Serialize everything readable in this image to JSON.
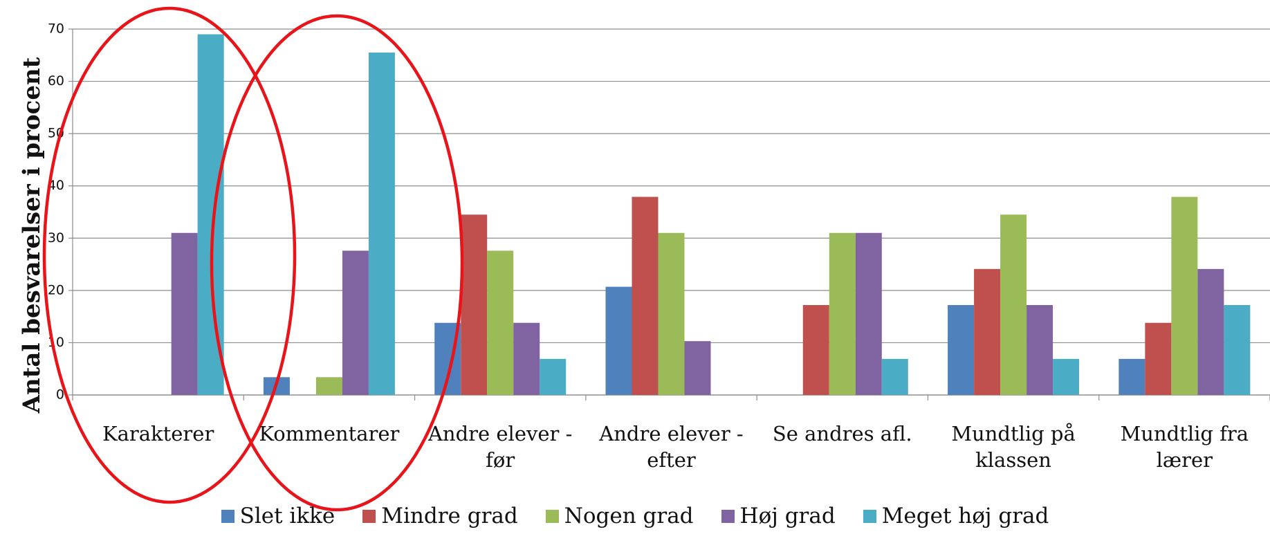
{
  "chart_data": {
    "type": "bar",
    "y_label": "Antal besvarelser i procent",
    "categories": [
      "Karakterer",
      "Kommentarer",
      "Andre elever -\nfør",
      "Andre elever -\nefter",
      "Se andres afl.",
      "Mundtlig på\nklassen",
      "Mundtlig fra\nlærer"
    ],
    "series": [
      {
        "name": "Slet ikke",
        "color": "#4f81bd",
        "values": [
          0,
          3.4,
          13.8,
          20.7,
          0,
          17.2,
          6.9
        ]
      },
      {
        "name": "Mindre grad",
        "color": "#c0504d",
        "values": [
          0,
          0,
          34.5,
          37.9,
          17.2,
          24.1,
          13.8
        ]
      },
      {
        "name": "Nogen grad",
        "color": "#9bbb59",
        "values": [
          0,
          3.4,
          27.6,
          31,
          31,
          34.5,
          37.9
        ]
      },
      {
        "name": "Høj grad",
        "color": "#8064a2",
        "values": [
          31,
          27.6,
          13.8,
          10.3,
          31,
          17.2,
          24.1
        ]
      },
      {
        "name": "Meget høj grad",
        "color": "#4bacc6",
        "values": [
          69,
          65.5,
          6.9,
          0,
          6.9,
          6.9,
          17.2
        ]
      }
    ],
    "ylim": [
      0,
      70
    ],
    "yticks": [
      0,
      10,
      20,
      30,
      40,
      50,
      60,
      70
    ],
    "grid": true,
    "legend": "bottom"
  }
}
